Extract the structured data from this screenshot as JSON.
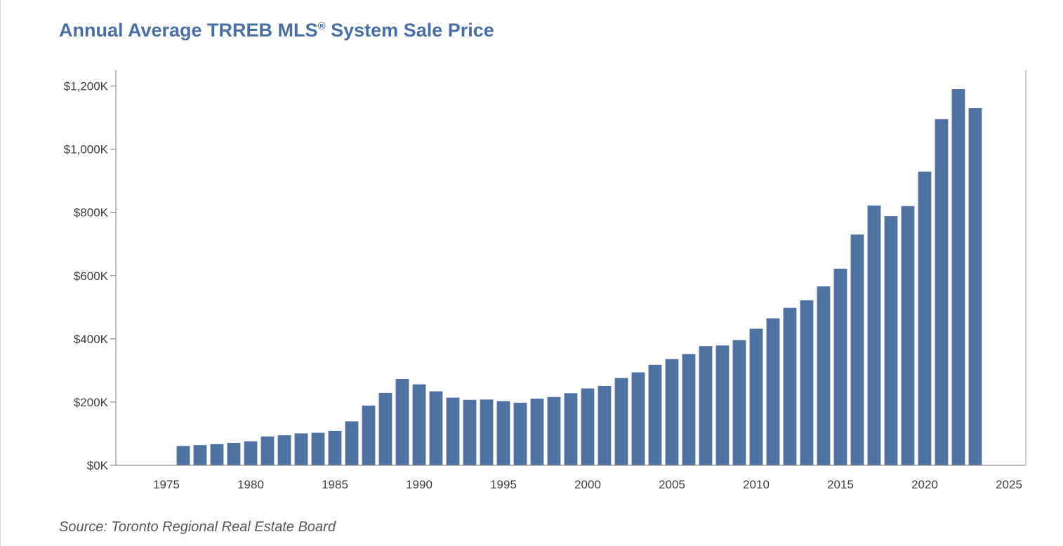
{
  "title": {
    "main": "Annual Average TRREB MLS",
    "reg": "®",
    "rest": " System Sale Price"
  },
  "source": "Source: Toronto Regional Real Estate Board",
  "colors": {
    "bar": "#4f72a3",
    "title": "#4a6fa3",
    "axis": "#7f7f7f"
  },
  "chart_data": {
    "type": "bar",
    "title": "Annual Average TRREB MLS® System Sale Price",
    "xlabel": "",
    "ylabel": "",
    "xlim": [
      1972,
      2026
    ],
    "ylim": [
      0,
      1250000
    ],
    "x_ticks": [
      1975,
      1980,
      1985,
      1990,
      1995,
      2000,
      2005,
      2010,
      2015,
      2020,
      2025
    ],
    "y_ticks": [
      {
        "value": 0,
        "label": "$0K"
      },
      {
        "value": 200000,
        "label": "$200K"
      },
      {
        "value": 400000,
        "label": "$400K"
      },
      {
        "value": 600000,
        "label": "$600K"
      },
      {
        "value": 800000,
        "label": "$800K"
      },
      {
        "value": 1000000,
        "label": "$1,000K"
      },
      {
        "value": 1200000,
        "label": "$1,200K"
      }
    ],
    "grid": false,
    "series": [
      {
        "x": [
          1976,
          1977,
          1978,
          1979,
          1980,
          1981,
          1982,
          1983,
          1984,
          1985,
          1986,
          1987,
          1988,
          1989,
          1990,
          1991,
          1992,
          1993,
          1994,
          1995,
          1996,
          1997,
          1998,
          1999,
          2000,
          2001,
          2002,
          2003,
          2004,
          2005,
          2006,
          2007,
          2008,
          2009,
          2010,
          2011,
          2012,
          2013,
          2014,
          2015,
          2016,
          2017,
          2018,
          2019,
          2020,
          2021,
          2022,
          2023
        ],
        "values": [
          61000,
          64000,
          67000,
          71000,
          76000,
          91000,
          95000,
          101000,
          103000,
          109000,
          139000,
          189000,
          229000,
          273000,
          256000,
          234000,
          214000,
          207000,
          208000,
          203000,
          198000,
          211000,
          216000,
          228000,
          243000,
          251000,
          276000,
          294000,
          318000,
          336000,
          352000,
          377000,
          379000,
          396000,
          432000,
          465000,
          498000,
          522000,
          566000,
          622000,
          730000,
          822000,
          788000,
          820000,
          929000,
          1095000,
          1190000,
          1130000
        ]
      }
    ]
  }
}
